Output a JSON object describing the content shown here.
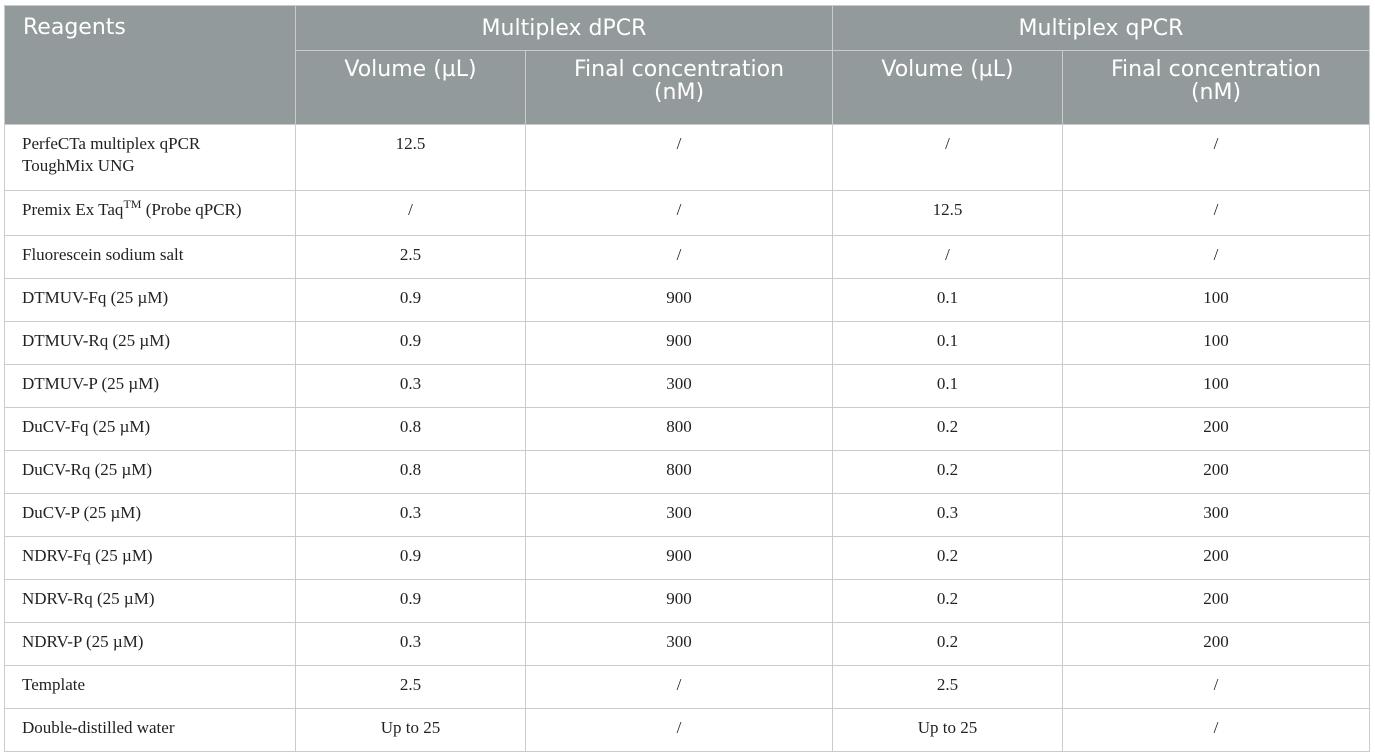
{
  "header": {
    "reagents": "Reagents",
    "group1": "Multiplex dPCR",
    "group2": "Multiplex qPCR",
    "col_volume": "Volume (µL)",
    "col_final_line1": "Final concentration",
    "col_final_line2": "(nM)"
  },
  "rows": [
    {
      "name": "PerfeCTa multiplex qPCR",
      "name2": "ToughMix UNG",
      "d_vol": "12.5",
      "d_conc": "/",
      "q_vol": "/",
      "q_conc": "/"
    },
    {
      "name": "Premix Ex Taq",
      "sup": "TM",
      "name_suffix": " (Probe qPCR)",
      "d_vol": "/",
      "d_conc": "/",
      "q_vol": "12.5",
      "q_conc": "/"
    },
    {
      "name": "Fluorescein sodium salt",
      "d_vol": "2.5",
      "d_conc": "/",
      "q_vol": "/",
      "q_conc": "/"
    },
    {
      "name": "DTMUV-Fq (25 µM)",
      "d_vol": "0.9",
      "d_conc": "900",
      "q_vol": "0.1",
      "q_conc": "100"
    },
    {
      "name": "DTMUV-Rq (25 µM)",
      "d_vol": "0.9",
      "d_conc": "900",
      "q_vol": "0.1",
      "q_conc": "100"
    },
    {
      "name": "DTMUV-P (25 µM)",
      "d_vol": "0.3",
      "d_conc": "300",
      "q_vol": "0.1",
      "q_conc": "100"
    },
    {
      "name": "DuCV-Fq (25 µM)",
      "d_vol": "0.8",
      "d_conc": "800",
      "q_vol": "0.2",
      "q_conc": "200"
    },
    {
      "name": "DuCV-Rq (25 µM)",
      "d_vol": "0.8",
      "d_conc": "800",
      "q_vol": "0.2",
      "q_conc": "200"
    },
    {
      "name": "DuCV-P (25 µM)",
      "d_vol": "0.3",
      "d_conc": "300",
      "q_vol": "0.3",
      "q_conc": "300"
    },
    {
      "name": "NDRV-Fq (25 µM)",
      "d_vol": "0.9",
      "d_conc": "900",
      "q_vol": "0.2",
      "q_conc": "200"
    },
    {
      "name": "NDRV-Rq (25 µM)",
      "d_vol": "0.9",
      "d_conc": "900",
      "q_vol": "0.2",
      "q_conc": "200"
    },
    {
      "name": "NDRV-P (25 µM)",
      "d_vol": "0.3",
      "d_conc": "300",
      "q_vol": "0.2",
      "q_conc": "200"
    },
    {
      "name": "Template",
      "d_vol": "2.5",
      "d_conc": "/",
      "q_vol": "2.5",
      "q_conc": "/"
    },
    {
      "name": "Double-distilled water",
      "d_vol": "Up to 25",
      "d_conc": "/",
      "q_vol": "Up to 25",
      "q_conc": "/"
    }
  ],
  "colors": {
    "header_bg": "#939a9b",
    "header_text": "#ffffff",
    "grid": "#c8cccd",
    "body_text": "#222222"
  }
}
